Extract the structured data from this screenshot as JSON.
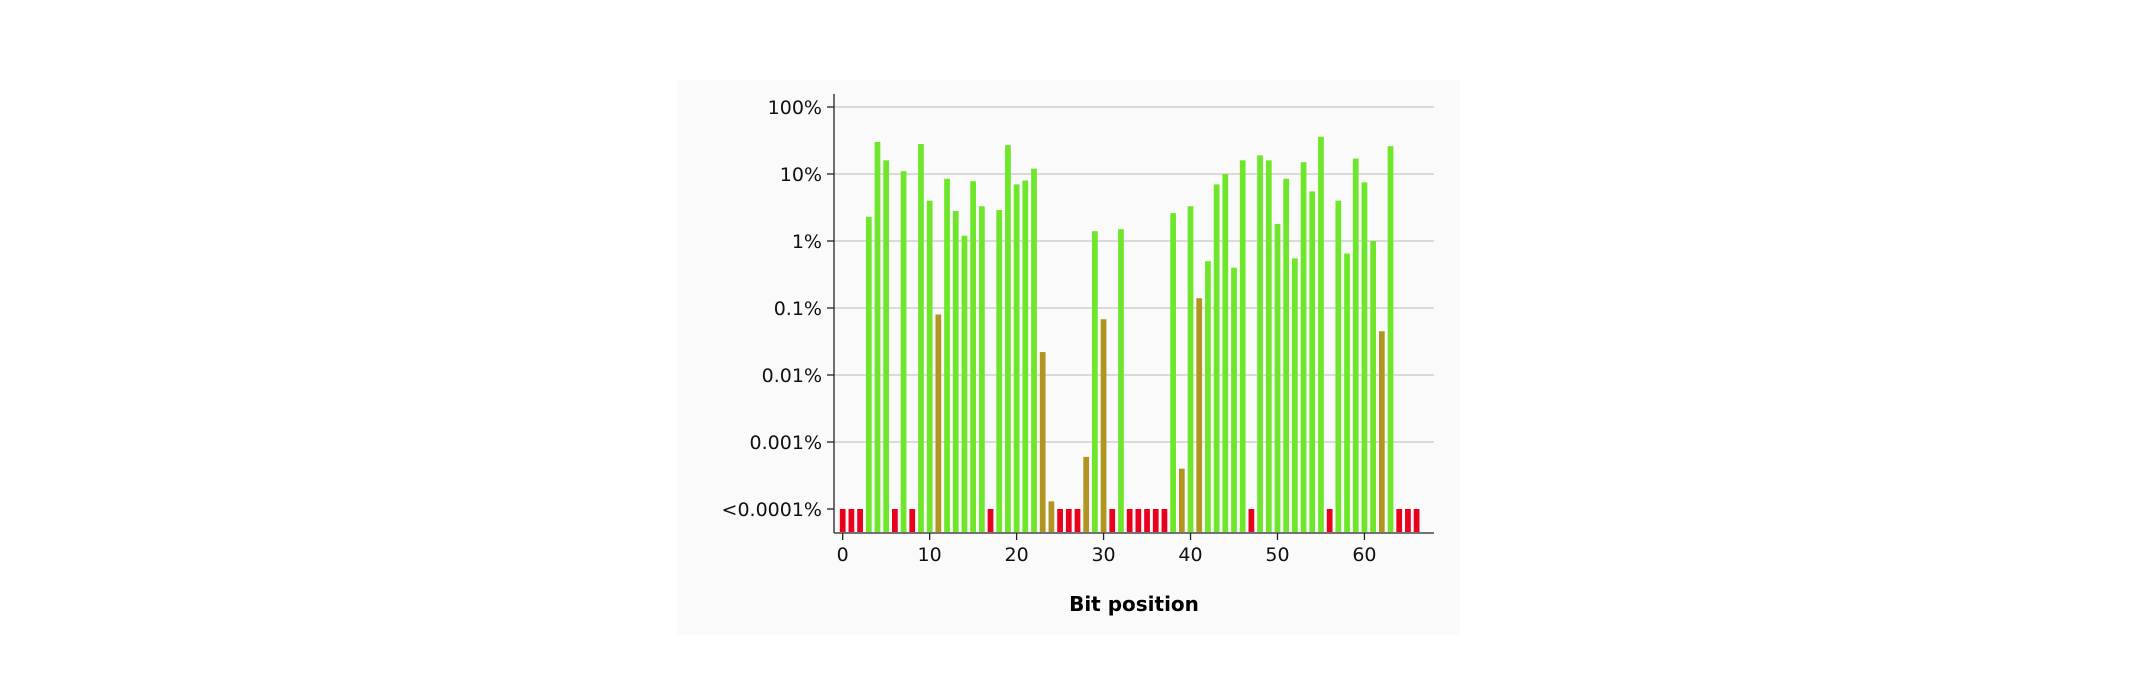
{
  "chart_data": {
    "type": "bar",
    "title": "",
    "xlabel": "Bit position",
    "ylabel": "",
    "x_scale": "linear",
    "y_scale": "log",
    "xlim": [
      -1,
      68
    ],
    "ylim": [
      0.0001,
      100
    ],
    "x_ticks": [
      0,
      10,
      20,
      30,
      40,
      50,
      60
    ],
    "x_tick_labels": [
      "0",
      "10",
      "20",
      "30",
      "40",
      "50",
      "60"
    ],
    "y_ticks": [
      0.0001,
      0.001,
      0.01,
      0.1,
      1,
      10,
      100
    ],
    "y_tick_labels": [
      "<0.0001%",
      "0.001%",
      "0.01%",
      "0.1%",
      "1%",
      "10%",
      "100%"
    ],
    "grid": "horizontal",
    "legend": "none",
    "colors": {
      "high": "#6ee62a",
      "mid": "#b09620",
      "low": "#e8001c",
      "grid": "#c8c8c8",
      "axis": "#222222"
    },
    "bit_positions": [
      0,
      1,
      2,
      3,
      4,
      5,
      6,
      7,
      8,
      9,
      10,
      11,
      12,
      13,
      14,
      15,
      16,
      17,
      18,
      19,
      20,
      21,
      22,
      23,
      24,
      25,
      26,
      27,
      28,
      29,
      30,
      31,
      32,
      33,
      34,
      35,
      36,
      37,
      38,
      39,
      40,
      41,
      42,
      43,
      44,
      45,
      46,
      47,
      48,
      49,
      50,
      51,
      52,
      53,
      54,
      55,
      56,
      57,
      58,
      59,
      60,
      61,
      62,
      63,
      64,
      65,
      66
    ],
    "values_percent": [
      0.0001,
      0.0001,
      0.0001,
      2.3,
      30,
      16,
      0.0001,
      11,
      0.0001,
      28,
      4,
      0.08,
      8.5,
      2.8,
      1.2,
      7.8,
      3.3,
      0.0001,
      2.9,
      27,
      7,
      8,
      12,
      0.022,
      0.00013,
      0.0001,
      0.0001,
      0.0001,
      0.0006,
      1.4,
      0.068,
      0.0001,
      1.5,
      0.0001,
      0.0001,
      0.0001,
      0.0001,
      0.0001,
      2.6,
      0.0004,
      3.3,
      0.14,
      0.5,
      7,
      10,
      0.4,
      16,
      0.0001,
      19,
      16,
      1.8,
      8.5,
      0.55,
      15,
      5.5,
      36,
      0.0001,
      4,
      0.65,
      17,
      7.5,
      1,
      0.045,
      26,
      0.0001,
      0.0001,
      0.0001
    ]
  }
}
